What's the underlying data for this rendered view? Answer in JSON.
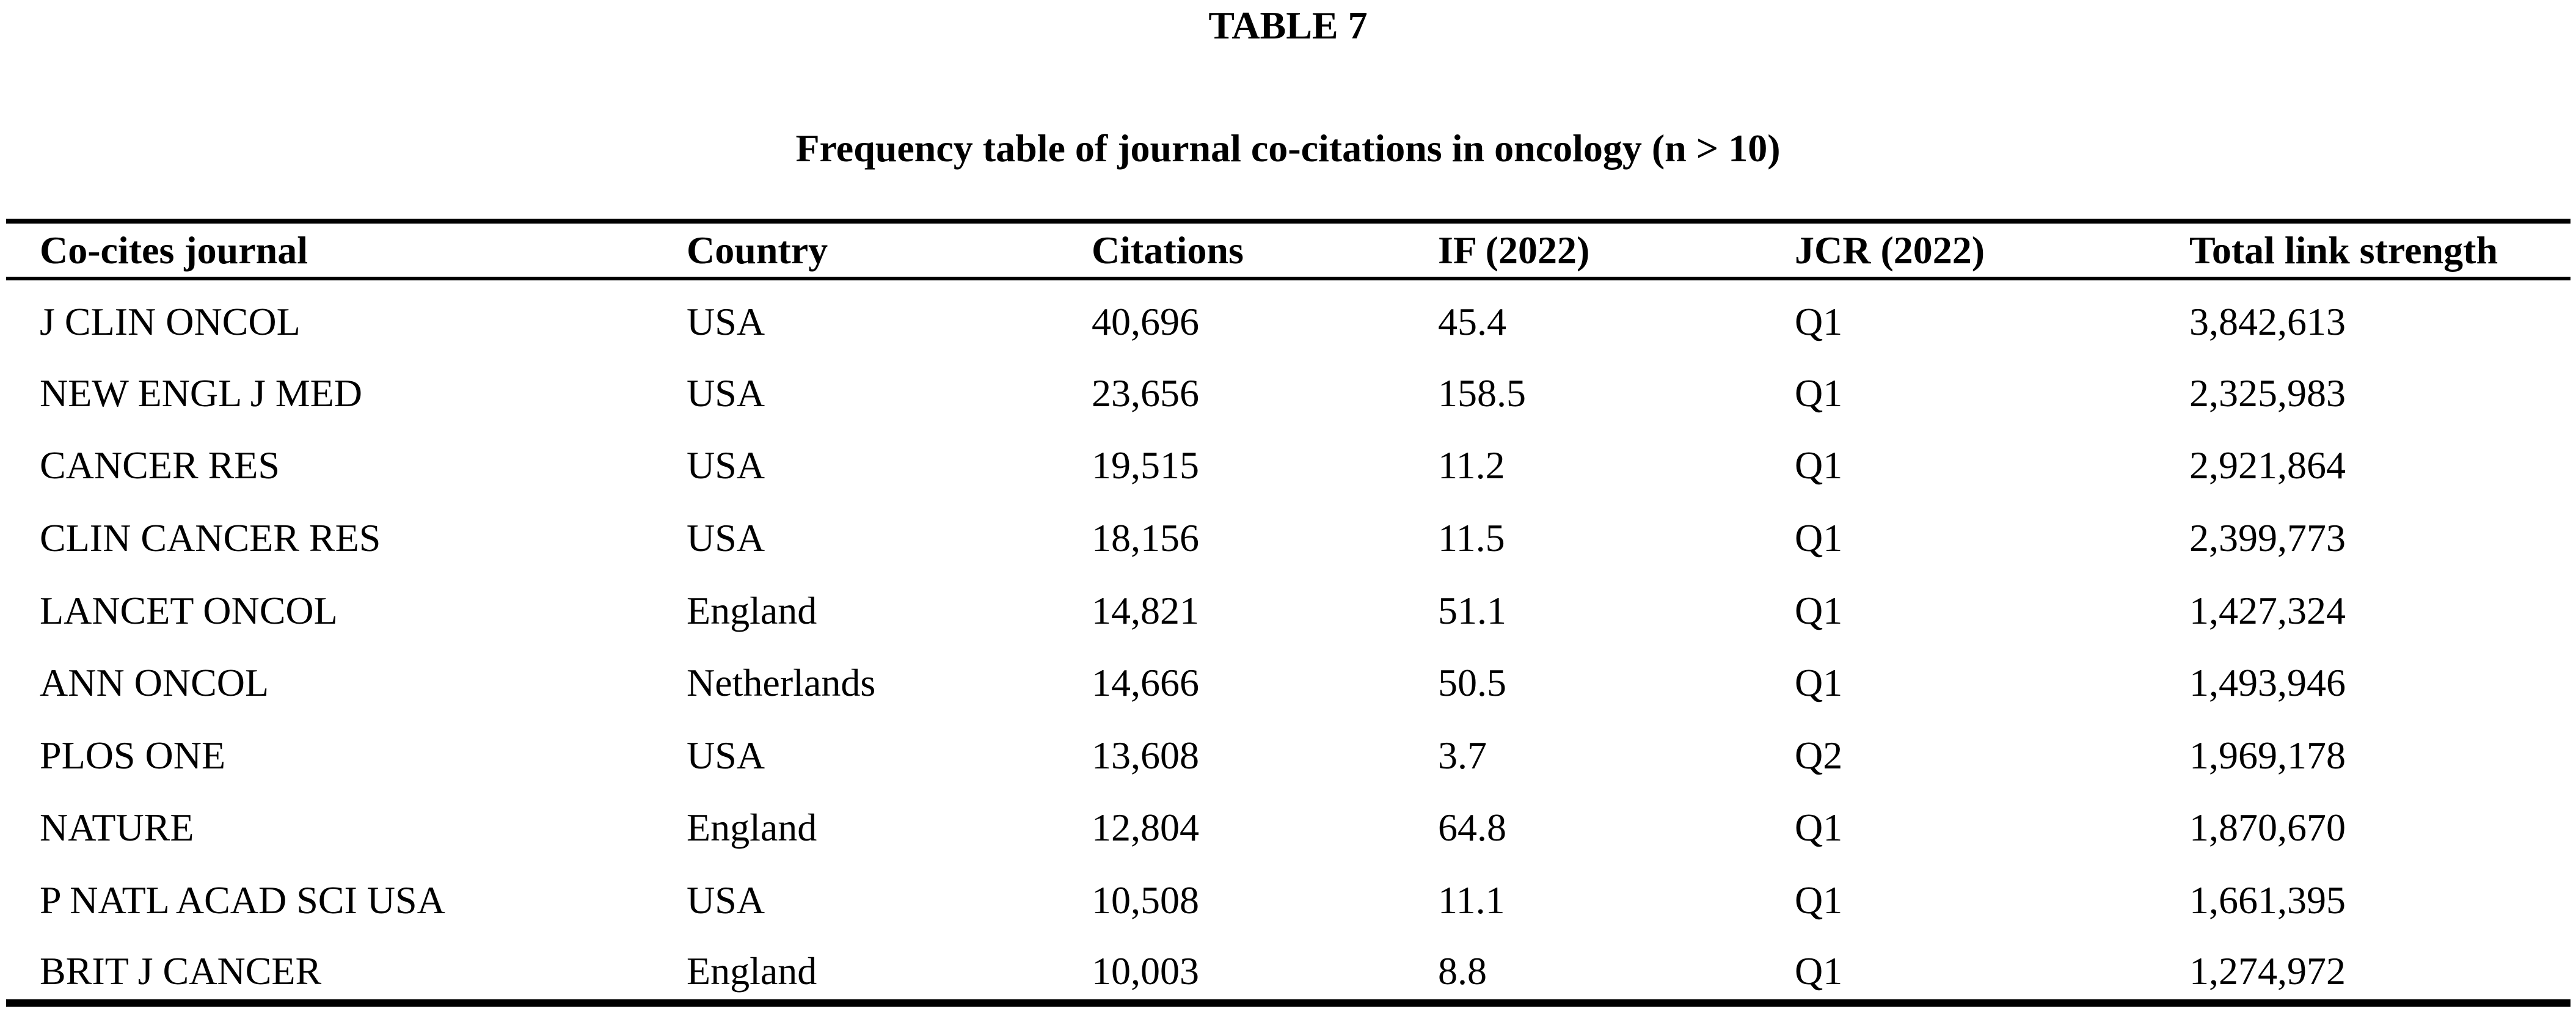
{
  "table_label": "TABLE 7",
  "caption": "Frequency table of journal co-citations in oncology (n > 10)",
  "columns": [
    "Co-cites journal",
    "Country",
    "Citations",
    "IF (2022)",
    "JCR (2022)",
    "Total link strength"
  ],
  "rows": [
    [
      "J CLIN ONCOL",
      "USA",
      "40,696",
      "45.4",
      "Q1",
      "3,842,613"
    ],
    [
      "NEW ENGL J MED",
      "USA",
      "23,656",
      "158.5",
      "Q1",
      "2,325,983"
    ],
    [
      "CANCER RES",
      "USA",
      "19,515",
      "11.2",
      "Q1",
      "2,921,864"
    ],
    [
      "CLIN CANCER RES",
      "USA",
      "18,156",
      "11.5",
      "Q1",
      "2,399,773"
    ],
    [
      "LANCET ONCOL",
      "England",
      "14,821",
      "51.1",
      "Q1",
      "1,427,324"
    ],
    [
      "ANN ONCOL",
      "Netherlands",
      "14,666",
      "50.5",
      "Q1",
      "1,493,946"
    ],
    [
      "PLOS ONE",
      "USA",
      "13,608",
      "3.7",
      "Q2",
      "1,969,178"
    ],
    [
      "NATURE",
      "England",
      "12,804",
      "64.8",
      "Q1",
      "1,870,670"
    ],
    [
      "P NATL ACAD SCI USA",
      "USA",
      "10,508",
      "11.1",
      "Q1",
      "1,661,395"
    ],
    [
      "BRIT J CANCER",
      "England",
      "10,003",
      "8.8",
      "Q1",
      "1,274,972"
    ]
  ]
}
